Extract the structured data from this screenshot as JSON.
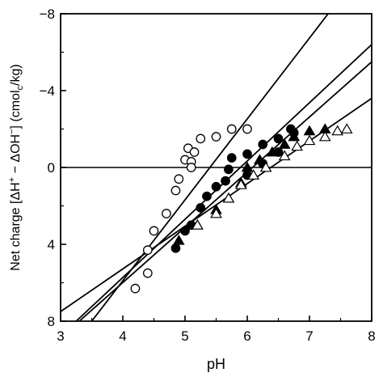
{
  "chart_data": {
    "type": "scatter",
    "title": "",
    "xlabel": "pH",
    "ylabel": "Net charge [ΔH⁺ − ΔOH⁻] (cmolc/kg)",
    "ylabel_parts": {
      "prefix": "Net charge [ΔH",
      "sup1": "+",
      "mid": " − ΔOH",
      "sup2": "−",
      "bracket": "] (cmol",
      "sub": "c",
      "suffix": "/kg)"
    },
    "xlim": [
      3,
      8
    ],
    "ylim": [
      8,
      -8
    ],
    "y_inverted": true,
    "xticks": [
      3,
      4,
      5,
      6,
      7,
      8
    ],
    "yticks": [
      -8,
      -4,
      0,
      4,
      8
    ],
    "xtick_labels": [
      "3",
      "4",
      "5",
      "6",
      "7",
      "8"
    ],
    "ytick_labels": [
      "−8",
      "−4",
      "0",
      "4",
      "8"
    ],
    "zero_line": true,
    "grid": false,
    "legend": "none",
    "series": [
      {
        "marker": "open-circle",
        "points": [
          [
            4.2,
            6.3
          ],
          [
            4.4,
            4.3
          ],
          [
            4.4,
            5.5
          ],
          [
            4.5,
            3.3
          ],
          [
            4.7,
            2.4
          ],
          [
            4.85,
            1.2
          ],
          [
            4.9,
            0.6
          ],
          [
            5.0,
            -0.4
          ],
          [
            5.05,
            -1.0
          ],
          [
            5.1,
            -0.3
          ],
          [
            5.1,
            0.0
          ],
          [
            5.15,
            -0.8
          ],
          [
            5.25,
            -1.5
          ],
          [
            5.5,
            -1.6
          ],
          [
            5.75,
            -2.0
          ],
          [
            6.0,
            -2.0
          ]
        ]
      },
      {
        "marker": "filled-circle",
        "points": [
          [
            4.85,
            4.2
          ],
          [
            5.0,
            3.3
          ],
          [
            5.1,
            3.0
          ],
          [
            5.25,
            2.1
          ],
          [
            5.35,
            1.5
          ],
          [
            5.5,
            1.0
          ],
          [
            5.65,
            0.7
          ],
          [
            5.7,
            0.1
          ],
          [
            5.75,
            -0.5
          ],
          [
            6.0,
            -0.7
          ],
          [
            6.0,
            0.4
          ],
          [
            6.25,
            -1.2
          ],
          [
            6.25,
            -0.2
          ],
          [
            6.5,
            -1.5
          ],
          [
            6.5,
            -0.8
          ],
          [
            6.7,
            -2.0
          ],
          [
            6.75,
            -1.8
          ]
        ]
      },
      {
        "marker": "filled-triangle",
        "points": [
          [
            4.9,
            3.8
          ],
          [
            5.2,
            3.0
          ],
          [
            5.5,
            2.2
          ],
          [
            5.7,
            1.6
          ],
          [
            5.9,
            0.8
          ],
          [
            6.0,
            0.0
          ],
          [
            6.2,
            -0.4
          ],
          [
            6.4,
            -0.8
          ],
          [
            6.6,
            -1.2
          ],
          [
            6.75,
            -1.6
          ],
          [
            7.0,
            -1.9
          ],
          [
            7.25,
            -2.0
          ]
        ]
      },
      {
        "marker": "open-triangle",
        "points": [
          [
            5.2,
            3.0
          ],
          [
            5.5,
            2.4
          ],
          [
            5.7,
            1.6
          ],
          [
            5.9,
            0.9
          ],
          [
            6.1,
            0.4
          ],
          [
            6.3,
            0.0
          ],
          [
            6.6,
            -0.6
          ],
          [
            6.8,
            -1.1
          ],
          [
            7.0,
            -1.4
          ],
          [
            7.25,
            -1.6
          ],
          [
            7.45,
            -1.9
          ],
          [
            7.6,
            -2.0
          ]
        ]
      }
    ],
    "lines": [
      {
        "x": [
          3.5,
          7.3
        ],
        "y": [
          8,
          -8
        ]
      },
      {
        "x": [
          3.25,
          8
        ],
        "y": [
          8,
          -6.4
        ]
      },
      {
        "x": [
          3,
          8
        ],
        "y": [
          7.5,
          -3.6
        ]
      },
      {
        "x": [
          3.3,
          8
        ],
        "y": [
          8,
          -5.5
        ]
      }
    ]
  }
}
